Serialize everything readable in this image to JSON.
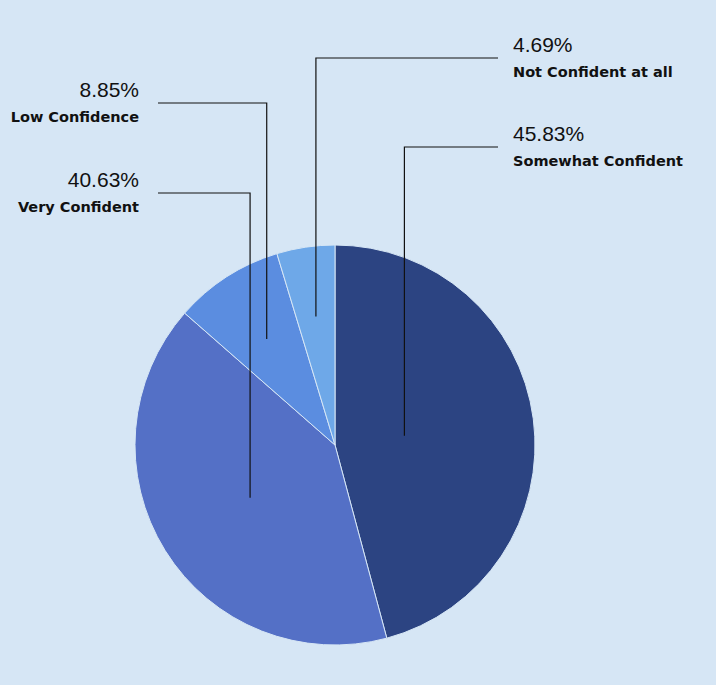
{
  "chart_data": {
    "type": "pie",
    "categories": [
      "Somewhat Confident",
      "Very Confident",
      "Low Confidence",
      "Not Confident at all"
    ],
    "values": [
      45.83,
      40.63,
      8.85,
      4.69
    ],
    "value_labels": [
      "45.83%",
      "40.63%",
      "8.85%",
      "4.69%"
    ],
    "colors": [
      "#2c4482",
      "#5470c6",
      "#5b8de0",
      "#6ea8e8"
    ],
    "data_labels": true
  }
}
